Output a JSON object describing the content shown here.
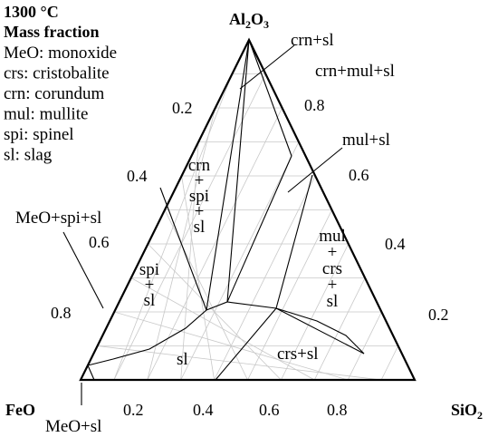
{
  "header": {
    "temperature": "1300 °C",
    "basis": "Mass fraction"
  },
  "legend": [
    {
      "abbr": "MeO",
      "name": "monoxide"
    },
    {
      "abbr": "crs",
      "name": "cristobalite"
    },
    {
      "abbr": "crn",
      "name": "corundum"
    },
    {
      "abbr": "mul",
      "name": "mullite"
    },
    {
      "abbr": "spi",
      "name": "spinel"
    },
    {
      "abbr": "sl",
      "name": "slag"
    }
  ],
  "vertices": {
    "top": "Al2O3",
    "left": "FeO",
    "right": "SiO2"
  },
  "ticks": {
    "bottom": [
      "0.2",
      "0.4",
      "0.6",
      "0.8"
    ],
    "left": [
      "0.2",
      "0.4",
      "0.6",
      "0.8"
    ],
    "right": [
      "0.8",
      "0.6",
      "0.4",
      "0.2"
    ]
  },
  "regions": {
    "crn_sl": "crn+sl",
    "crn_mul_sl": "crn+mul+sl",
    "mul_sl": "mul+sl",
    "meo_spi_sl": "MeO+spi+sl",
    "meo_sl": "MeO+sl",
    "crs_sl": "crs+sl",
    "sl": "sl",
    "crn_spi_sl": [
      "crn",
      "+",
      "spi",
      "+",
      "sl"
    ],
    "spi_sl": [
      "spi",
      "+",
      "sl"
    ],
    "mul_crs_sl": [
      "mul",
      "+",
      "crs",
      "+",
      "sl"
    ]
  }
}
